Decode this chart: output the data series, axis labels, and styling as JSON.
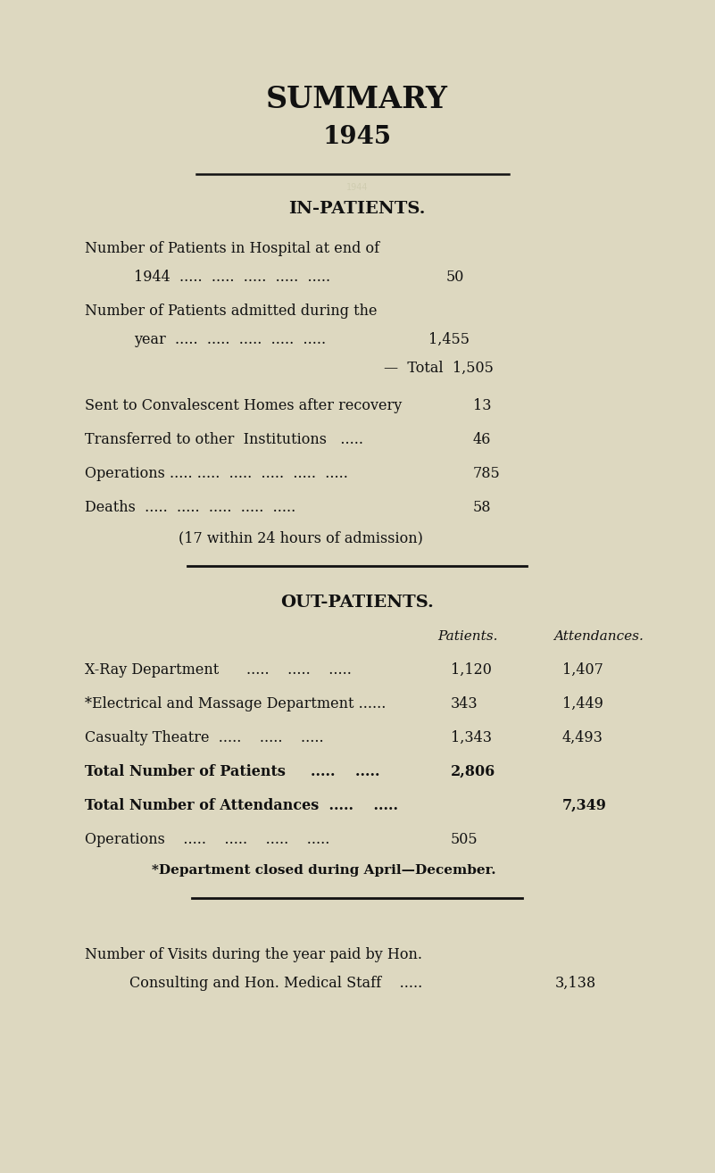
{
  "title": "SUMMARY",
  "year": "1945",
  "bg_color": "#ddd8c0",
  "text_color": "#111111",
  "in_patients_header": "IN-PATIENTS.",
  "out_patients_header": "OUT-PATIENTS.",
  "out_col1": "Patients.",
  "out_col2": "Attendances.",
  "footnote": "*Department closed during April—December.",
  "visits_line1": "Number of Visits during the year paid by Hon.",
  "visits_line2": "Consulting and Hon. Medical Staff    .....",
  "visits_value": "3,138"
}
